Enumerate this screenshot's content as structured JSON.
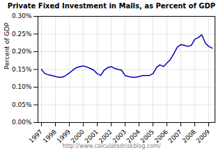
{
  "chart_data": {
    "type": "line",
    "title": "Private Fixed Investment in Malls, as Percent of GDP",
    "xlabel": "http://www.calculatedriskblog.com/",
    "ylabel": "Percent of GDP",
    "categories": [
      "1997",
      null,
      null,
      null,
      "1998",
      null,
      null,
      null,
      "1999",
      null,
      null,
      null,
      "2000",
      null,
      null,
      null,
      "2001",
      null,
      null,
      null,
      "2002",
      null,
      null,
      null,
      "2003",
      null,
      null,
      null,
      "2004",
      null,
      null,
      null,
      "2005",
      null,
      null,
      null,
      "2006",
      null,
      null,
      null,
      "2007",
      null,
      null,
      null,
      "2008",
      null,
      null,
      null,
      "2009",
      null
    ],
    "values": [
      0.0015,
      0.00138,
      0.00135,
      0.00133,
      0.0013,
      0.00128,
      0.00128,
      0.00133,
      0.0014,
      0.00148,
      0.00155,
      0.00158,
      0.0016,
      0.00157,
      0.00153,
      0.00148,
      0.00138,
      0.00133,
      0.00148,
      0.00155,
      0.00158,
      0.00153,
      0.0015,
      0.00148,
      0.00133,
      0.0013,
      0.00128,
      0.00128,
      0.0013,
      0.00133,
      0.00133,
      0.00133,
      0.00138,
      0.00155,
      0.00163,
      0.00158,
      0.00168,
      0.00178,
      0.00195,
      0.00213,
      0.0022,
      0.00218,
      0.00215,
      0.00218,
      0.00235,
      0.0024,
      0.00248,
      0.00225,
      0.00215,
      0.0021
    ],
    "color": "#0000bb",
    "ylim": [
      0.0,
      0.003
    ],
    "yticks": [
      {
        "value": 0.0,
        "label": "0.00%"
      },
      {
        "value": 0.0005,
        "label": "0.05%"
      },
      {
        "value": 0.001,
        "label": "0.10%"
      },
      {
        "value": 0.0015,
        "label": "0.15%"
      },
      {
        "value": 0.002,
        "label": "0.20%"
      },
      {
        "value": 0.0025,
        "label": "0.25%"
      },
      {
        "value": 0.003,
        "label": "0.30%"
      }
    ],
    "grid": true
  }
}
